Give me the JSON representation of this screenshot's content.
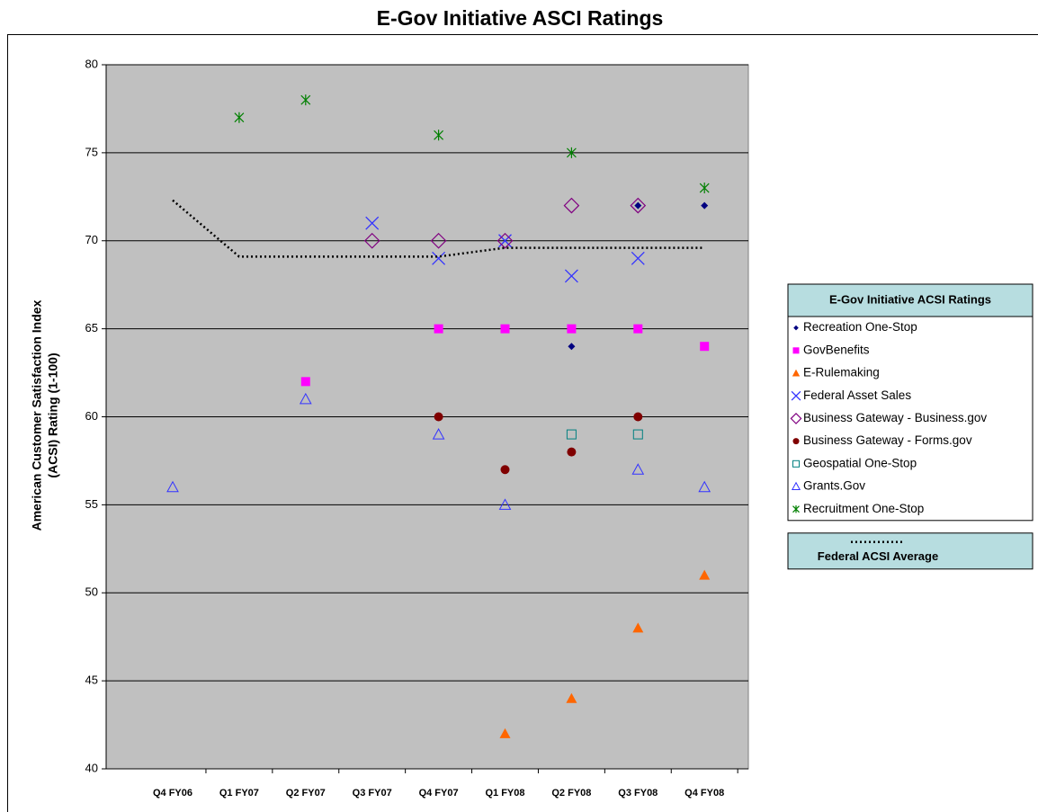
{
  "chart_data": {
    "type": "scatter",
    "title": "E-Gov Initiative ASCI Ratings",
    "ylabel": [
      "American Customer Satisfaction Index",
      "(ACSI) Rating  (1-100)"
    ],
    "legend_title": "E-Gov Initiative ACSI Ratings",
    "categories": [
      "Q4 FY06",
      "Q1 FY07",
      "Q2 FY07",
      "Q3 FY07",
      "Q4 FY07",
      "Q1 FY08",
      "Q2 FY08",
      "Q3 FY08",
      "Q4 FY08"
    ],
    "ylim": [
      40,
      80
    ],
    "yticks": [
      40,
      45,
      50,
      55,
      60,
      65,
      70,
      75,
      80
    ],
    "grid": true,
    "legend": "right",
    "series": [
      {
        "name": "Recreation One-Stop",
        "color": "#000080",
        "marker": "diamond-small",
        "values": [
          null,
          null,
          null,
          null,
          null,
          null,
          64,
          72,
          72
        ]
      },
      {
        "name": "GovBenefits",
        "color": "#ff00ff",
        "marker": "square",
        "values": [
          null,
          null,
          62,
          null,
          65,
          65,
          65,
          65,
          64
        ]
      },
      {
        "name": "E-Rulemaking",
        "color": "#ff6600",
        "marker": "triangle",
        "values": [
          null,
          null,
          null,
          null,
          null,
          42,
          44,
          48,
          51
        ]
      },
      {
        "name": "Federal Asset Sales",
        "color": "#3333ff",
        "marker": "x",
        "values": [
          null,
          null,
          null,
          71,
          69,
          70,
          68,
          69,
          null
        ]
      },
      {
        "name": "Business Gateway - Business.gov",
        "color": "#800080",
        "marker": "diamond-open",
        "values": [
          null,
          null,
          null,
          70,
          70,
          70,
          72,
          72,
          null
        ]
      },
      {
        "name": "Business Gateway - Forms.gov",
        "color": "#800000",
        "marker": "circle",
        "values": [
          null,
          null,
          null,
          null,
          60,
          57,
          58,
          60,
          null
        ]
      },
      {
        "name": "Geospatial One-Stop",
        "color": "#008080",
        "marker": "square-open",
        "values": [
          null,
          null,
          null,
          null,
          null,
          null,
          59,
          59,
          null
        ]
      },
      {
        "name": "Grants.Gov",
        "color": "#3333ff",
        "marker": "triangle-open",
        "values": [
          56,
          null,
          61,
          null,
          59,
          55,
          null,
          57,
          56
        ]
      },
      {
        "name": "Recruitment One-Stop",
        "color": "#008000",
        "marker": "star",
        "values": [
          null,
          77,
          78,
          null,
          76,
          null,
          75,
          null,
          73
        ]
      },
      {
        "name": "Federal ACSI Average",
        "color": "#000000",
        "marker": "dotted-line",
        "values": [
          72.3,
          69.1,
          69.1,
          69.1,
          69.1,
          69.6,
          69.6,
          69.6,
          69.6
        ]
      }
    ]
  }
}
